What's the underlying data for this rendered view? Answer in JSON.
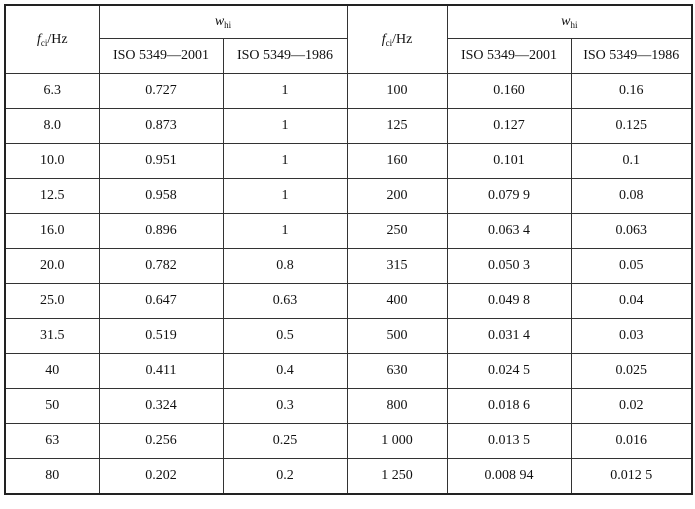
{
  "header": {
    "freq_symbol": "f",
    "freq_sub": "ci",
    "freq_unit": "/Hz",
    "weight_symbol": "w",
    "weight_sub": "hi",
    "col_2001": "ISO 5349—2001",
    "col_1986": "ISO 5349—1986"
  },
  "rows": [
    {
      "f1": "6.3",
      "a1": "0.727",
      "b1": "1",
      "f2": "100",
      "a2": "0.160",
      "b2": "0.16"
    },
    {
      "f1": "8.0",
      "a1": "0.873",
      "b1": "1",
      "f2": "125",
      "a2": "0.127",
      "b2": "0.125"
    },
    {
      "f1": "10.0",
      "a1": "0.951",
      "b1": "1",
      "f2": "160",
      "a2": "0.101",
      "b2": "0.1"
    },
    {
      "f1": "12.5",
      "a1": "0.958",
      "b1": "1",
      "f2": "200",
      "a2": "0.079 9",
      "b2": "0.08"
    },
    {
      "f1": "16.0",
      "a1": "0.896",
      "b1": "1",
      "f2": "250",
      "a2": "0.063 4",
      "b2": "0.063"
    },
    {
      "f1": "20.0",
      "a1": "0.782",
      "b1": "0.8",
      "f2": "315",
      "a2": "0.050 3",
      "b2": "0.05"
    },
    {
      "f1": "25.0",
      "a1": "0.647",
      "b1": "0.63",
      "f2": "400",
      "a2": "0.049 8",
      "b2": "0.04"
    },
    {
      "f1": "31.5",
      "a1": "0.519",
      "b1": "0.5",
      "f2": "500",
      "a2": "0.031 4",
      "b2": "0.03"
    },
    {
      "f1": "40",
      "a1": "0.411",
      "b1": "0.4",
      "f2": "630",
      "a2": "0.024 5",
      "b2": "0.025"
    },
    {
      "f1": "50",
      "a1": "0.324",
      "b1": "0.3",
      "f2": "800",
      "a2": "0.018 6",
      "b2": "0.02"
    },
    {
      "f1": "63",
      "a1": "0.256",
      "b1": "0.25",
      "f2": "1 000",
      "a2": "0.013 5",
      "b2": "0.016"
    },
    {
      "f1": "80",
      "a1": "0.202",
      "b1": "0.2",
      "f2": "1 250",
      "a2": "0.008 94",
      "b2": "0.012 5"
    }
  ]
}
